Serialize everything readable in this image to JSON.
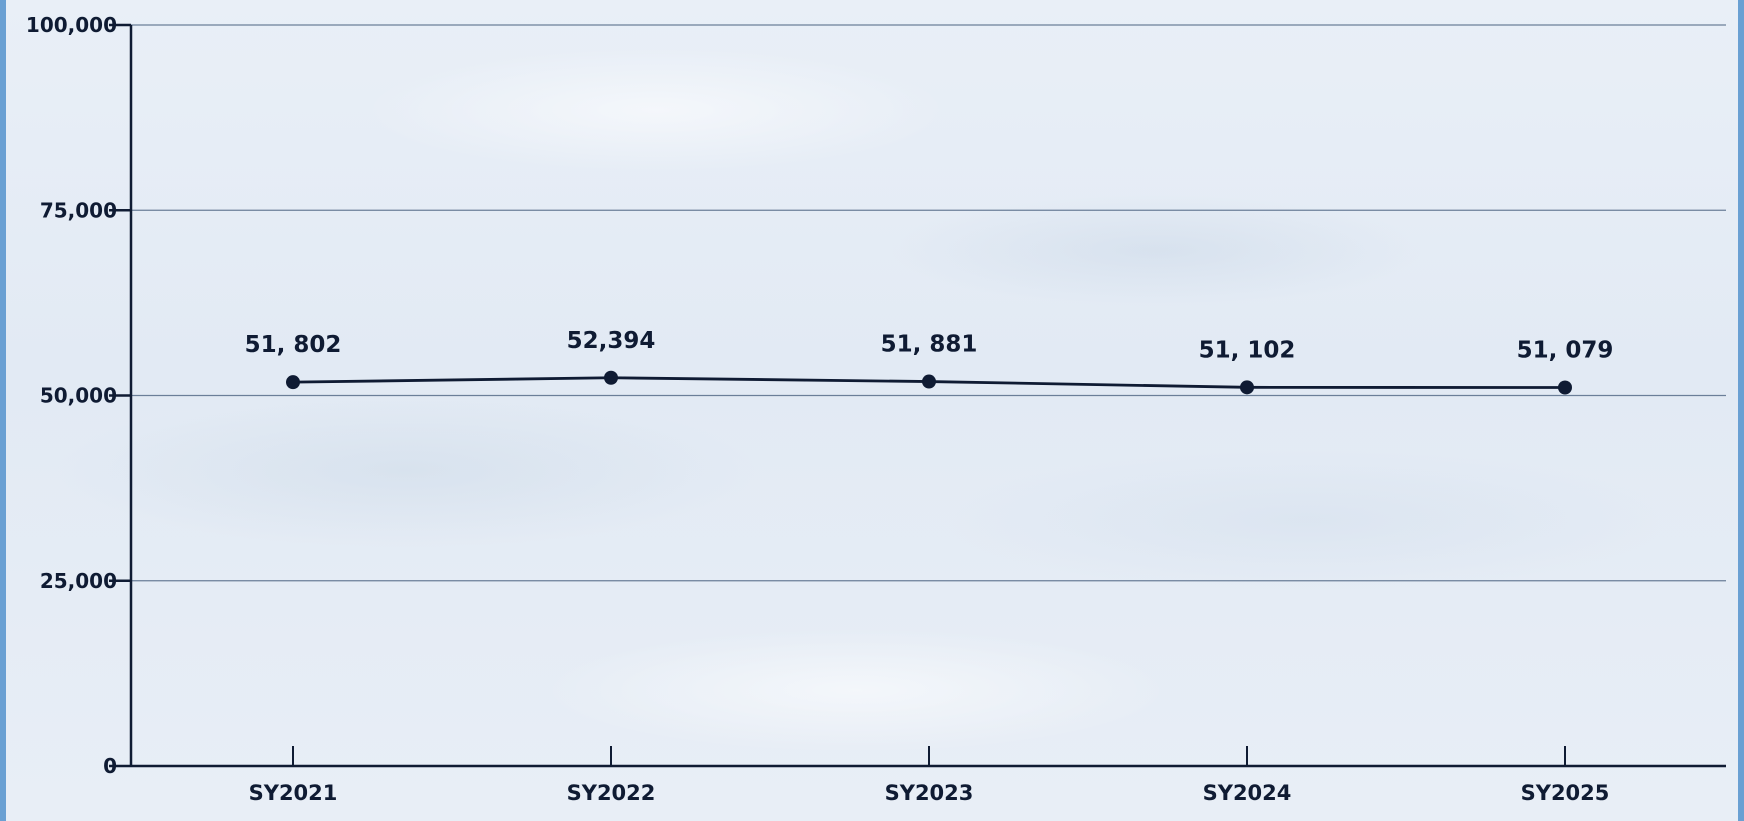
{
  "chart_data": {
    "type": "line",
    "title": "",
    "xlabel": "",
    "ylabel": "",
    "categories": [
      "SY2021",
      "SY2022",
      "SY2023",
      "SY2024",
      "SY2025"
    ],
    "series": [
      {
        "values": [
          51802,
          52394,
          51881,
          51102,
          51079
        ],
        "labels": [
          "51, 802",
          "52,394",
          "51, 881",
          "51, 102",
          "51, 079"
        ]
      }
    ],
    "ylim": [
      0,
      100000
    ],
    "yticks": [
      0,
      25000,
      50000,
      75000,
      100000
    ],
    "ytick_labels": [
      "0",
      "25,000",
      "50,000",
      "75,000",
      "100,000"
    ],
    "grid": "horizontal",
    "legend": "none",
    "colors": {
      "line": "#0f1b33",
      "grid": "#6b7f99",
      "axis": "#0f1b33",
      "text": "#0f1b33",
      "frame_border": "#6aa0d3"
    }
  }
}
